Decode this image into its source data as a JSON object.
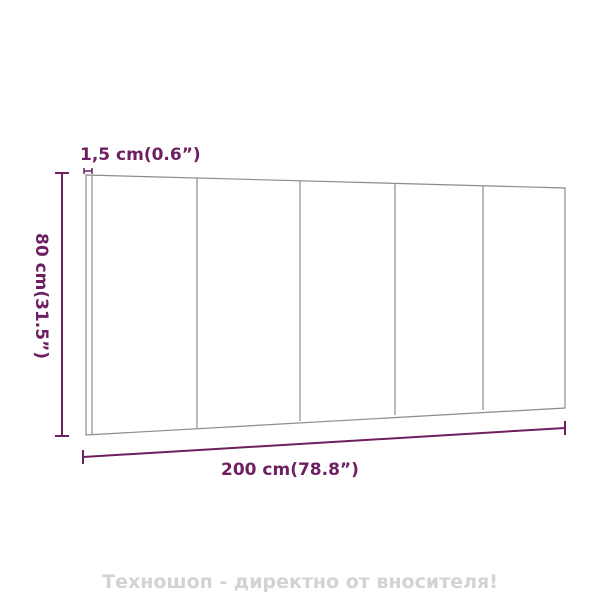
{
  "dimensions": {
    "thickness": "1,5 cm(0.6”)",
    "height": "80 cm(31.5”)",
    "width": "200 cm(78.8”)"
  },
  "watermark": "Техношоп - директно от вносителя!",
  "colors": {
    "dimension": "#6e1f62",
    "panel_outline": "#8c8c8c",
    "watermark": "#d3d3d3"
  }
}
